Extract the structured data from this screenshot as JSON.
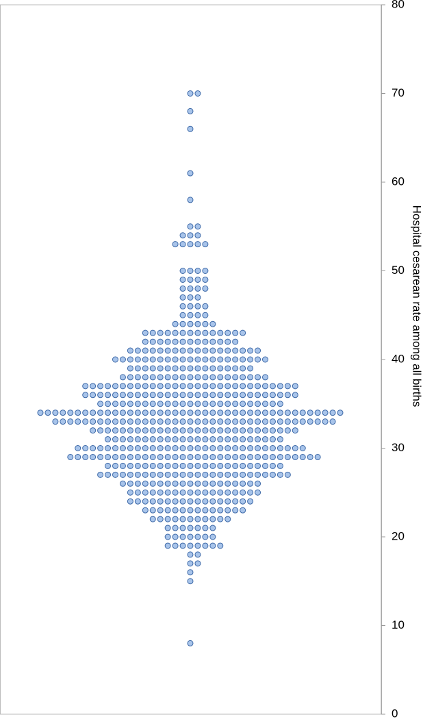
{
  "chart_data": {
    "type": "dotplot",
    "y_label": "Hospital cesarean rate among all births",
    "values": [
      70,
      68,
      66,
      61,
      58,
      55,
      54,
      53,
      50,
      49,
      48,
      47,
      46,
      45,
      44,
      43,
      42,
      41,
      40,
      39,
      38,
      37,
      36,
      35,
      34,
      33,
      32,
      31,
      30,
      29,
      28,
      27,
      26,
      25,
      24,
      23,
      22,
      21,
      20,
      19,
      18,
      17,
      16,
      15,
      8
    ],
    "counts": [
      2,
      1,
      1,
      1,
      1,
      2,
      3,
      5,
      4,
      4,
      4,
      3,
      4,
      4,
      6,
      14,
      13,
      18,
      21,
      17,
      20,
      29,
      29,
      25,
      41,
      38,
      28,
      24,
      31,
      34,
      24,
      26,
      19,
      18,
      17,
      14,
      11,
      7,
      7,
      8,
      2,
      2,
      1,
      1,
      1
    ],
    "color": "#a8c4ea",
    "edge_color": "#3b67a6",
    "ylim": [
      0,
      80
    ],
    "yticks": [
      0,
      10,
      20,
      30,
      40,
      50,
      60,
      70,
      80
    ],
    "y_axis_side": "right"
  }
}
